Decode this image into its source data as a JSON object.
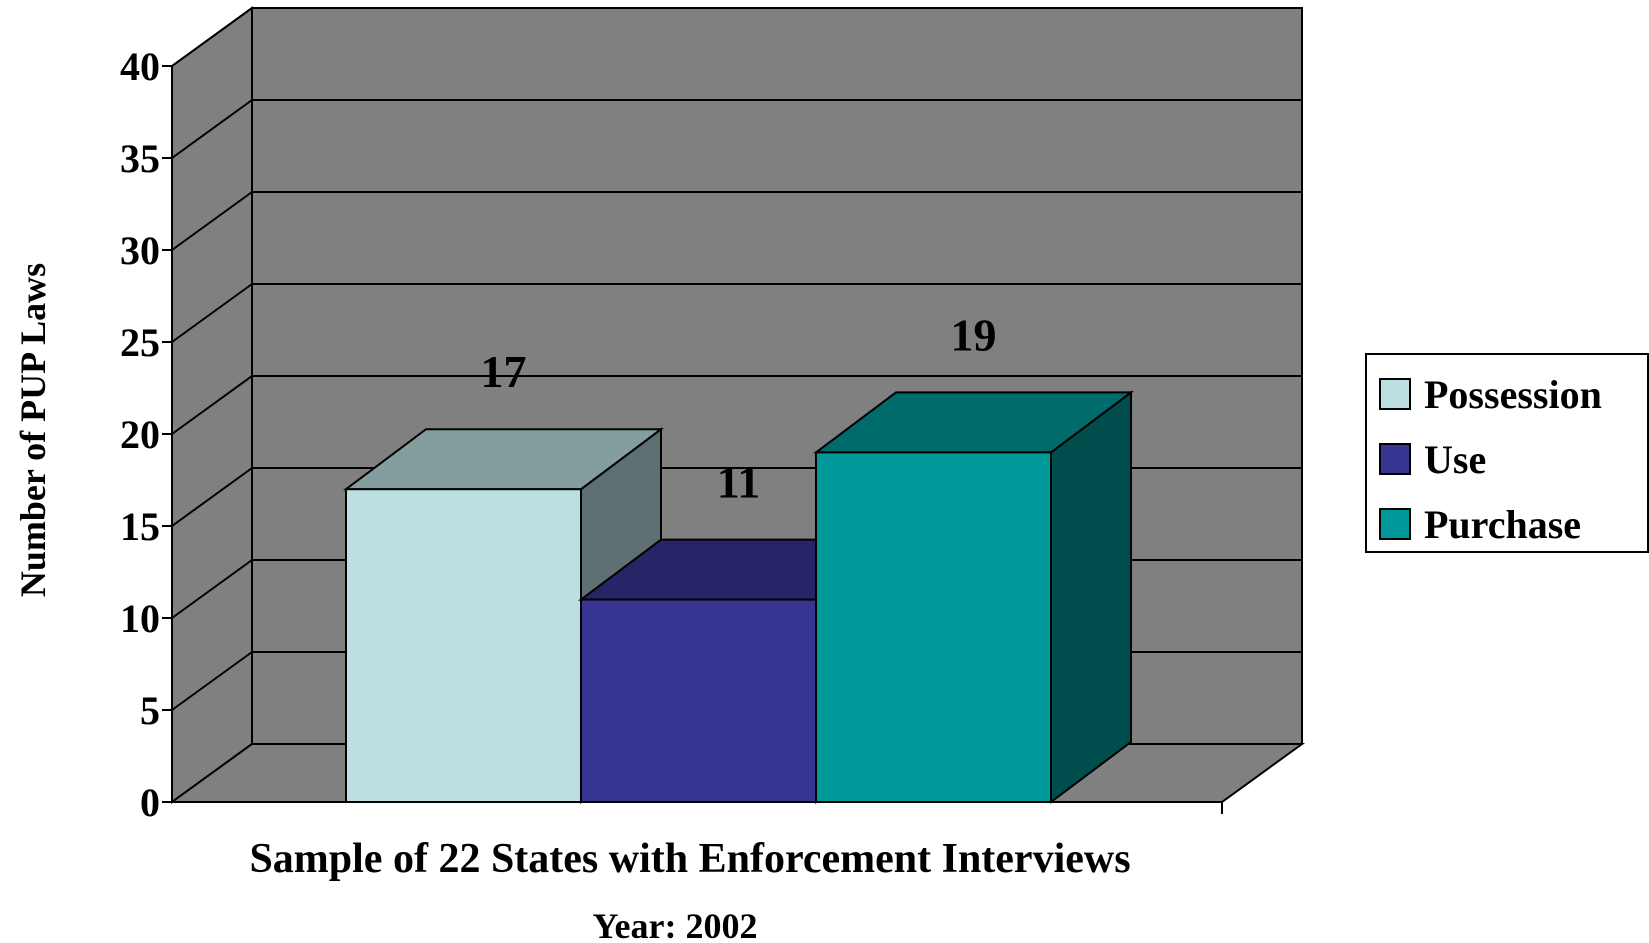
{
  "chart_data": {
    "type": "bar",
    "style": "3d-clustered",
    "categories": [
      ""
    ],
    "series": [
      {
        "name": "Possession",
        "values": [
          17
        ],
        "color": "#BCE0E2"
      },
      {
        "name": "Use",
        "values": [
          11
        ],
        "color": "#363594"
      },
      {
        "name": "Purchase",
        "values": [
          19
        ],
        "color": "#009999"
      }
    ],
    "data_labels": [
      "17",
      "11",
      "19"
    ],
    "xlabel": "Sample of 22 States with Enforcement Interviews",
    "subtitle": "Year: 2002",
    "ylabel": "Number  of PUP Laws",
    "ylim": [
      0,
      40
    ],
    "yticks": [
      "0",
      "5",
      "10",
      "15",
      "20",
      "25",
      "30",
      "35",
      "40"
    ],
    "grid": true,
    "legend": {
      "position": "right",
      "items": [
        "Possession",
        "Use",
        "Purchase"
      ]
    },
    "colors": {
      "wall": "#808080",
      "floor": "#808080",
      "gridline": "#000000"
    }
  }
}
